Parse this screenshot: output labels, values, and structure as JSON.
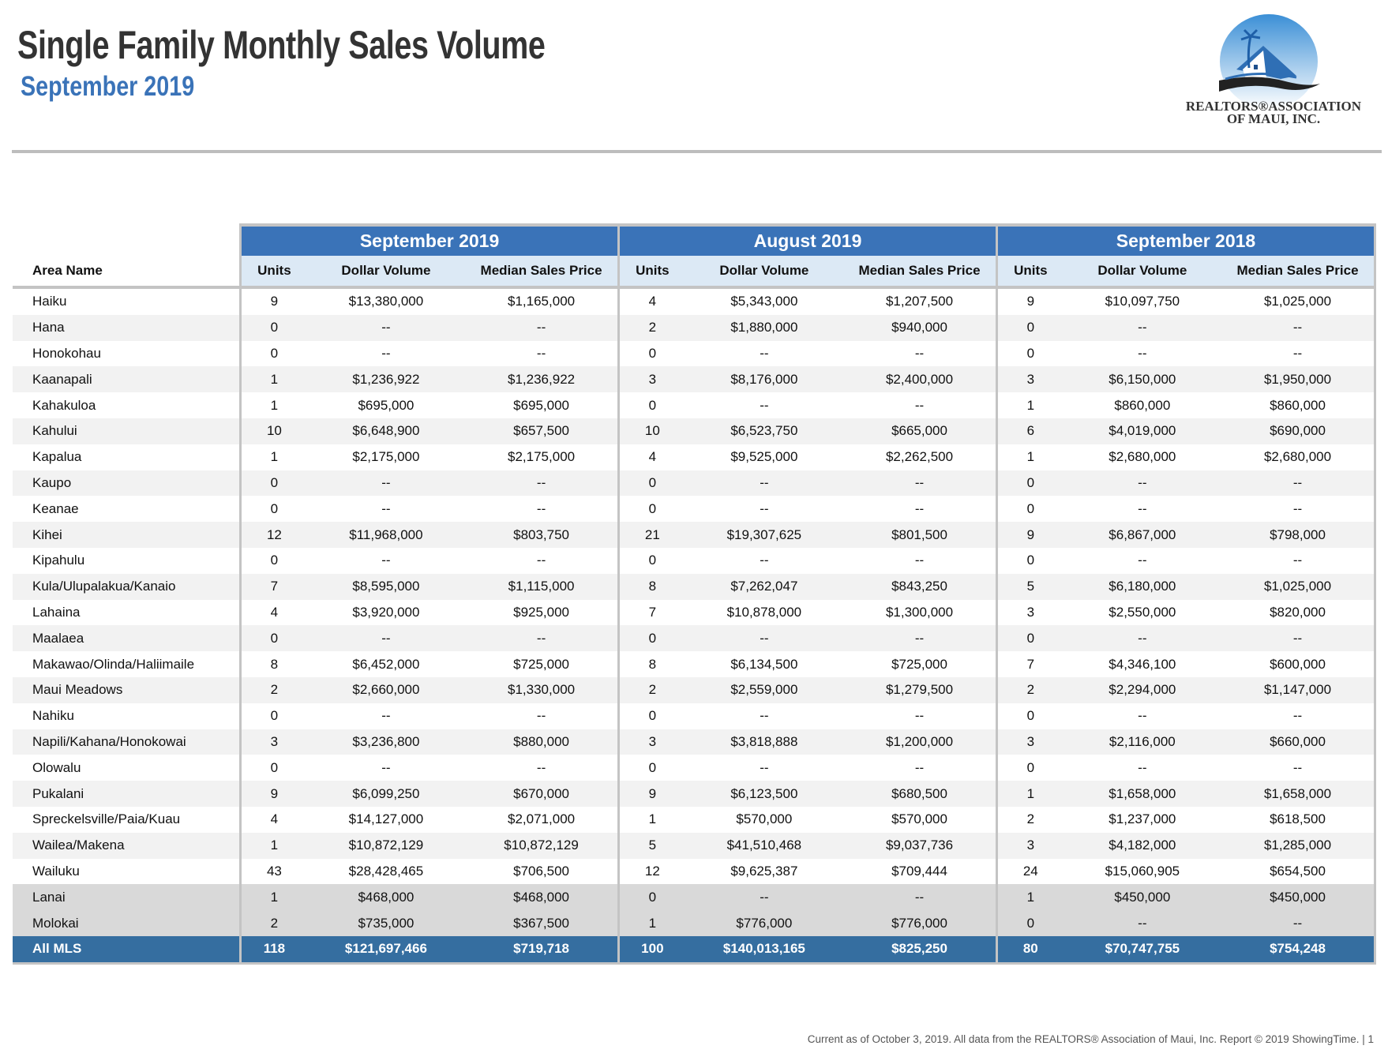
{
  "header": {
    "title": "Single Family Monthly Sales Volume",
    "subtitle": "September 2019",
    "logo_text": "REALTORS® ASSOCIATION OF MAUI, INC."
  },
  "colors": {
    "accent": "#3a73b8",
    "subheader": "#dce9f5",
    "total_row": "#356ea0",
    "island_rows": "#d9d9d9",
    "alt_rows": "#f2f2f2"
  },
  "table": {
    "area_header": "Area Name",
    "groups": [
      "September 2019",
      "August 2019",
      "September 2018"
    ],
    "sub_headers": [
      "Units",
      "Dollar Volume",
      "Median Sales Price"
    ],
    "rows": [
      {
        "area": "Haiku",
        "values": [
          "9",
          "$13,380,000",
          "$1,165,000",
          "4",
          "$5,343,000",
          "$1,207,500",
          "9",
          "$10,097,750",
          "$1,025,000"
        ]
      },
      {
        "area": "Hana",
        "values": [
          "0",
          "--",
          "--",
          "2",
          "$1,880,000",
          "$940,000",
          "0",
          "--",
          "--"
        ]
      },
      {
        "area": "Honokohau",
        "values": [
          "0",
          "--",
          "--",
          "0",
          "--",
          "--",
          "0",
          "--",
          "--"
        ]
      },
      {
        "area": "Kaanapali",
        "values": [
          "1",
          "$1,236,922",
          "$1,236,922",
          "3",
          "$8,176,000",
          "$2,400,000",
          "3",
          "$6,150,000",
          "$1,950,000"
        ]
      },
      {
        "area": "Kahakuloa",
        "values": [
          "1",
          "$695,000",
          "$695,000",
          "0",
          "--",
          "--",
          "1",
          "$860,000",
          "$860,000"
        ]
      },
      {
        "area": "Kahului",
        "values": [
          "10",
          "$6,648,900",
          "$657,500",
          "10",
          "$6,523,750",
          "$665,000",
          "6",
          "$4,019,000",
          "$690,000"
        ]
      },
      {
        "area": "Kapalua",
        "values": [
          "1",
          "$2,175,000",
          "$2,175,000",
          "4",
          "$9,525,000",
          "$2,262,500",
          "1",
          "$2,680,000",
          "$2,680,000"
        ]
      },
      {
        "area": "Kaupo",
        "values": [
          "0",
          "--",
          "--",
          "0",
          "--",
          "--",
          "0",
          "--",
          "--"
        ]
      },
      {
        "area": "Keanae",
        "values": [
          "0",
          "--",
          "--",
          "0",
          "--",
          "--",
          "0",
          "--",
          "--"
        ]
      },
      {
        "area": "Kihei",
        "values": [
          "12",
          "$11,968,000",
          "$803,750",
          "21",
          "$19,307,625",
          "$801,500",
          "9",
          "$6,867,000",
          "$798,000"
        ]
      },
      {
        "area": "Kipahulu",
        "values": [
          "0",
          "--",
          "--",
          "0",
          "--",
          "--",
          "0",
          "--",
          "--"
        ]
      },
      {
        "area": "Kula/Ulupalakua/Kanaio",
        "values": [
          "7",
          "$8,595,000",
          "$1,115,000",
          "8",
          "$7,262,047",
          "$843,250",
          "5",
          "$6,180,000",
          "$1,025,000"
        ]
      },
      {
        "area": "Lahaina",
        "values": [
          "4",
          "$3,920,000",
          "$925,000",
          "7",
          "$10,878,000",
          "$1,300,000",
          "3",
          "$2,550,000",
          "$820,000"
        ]
      },
      {
        "area": "Maalaea",
        "values": [
          "0",
          "--",
          "--",
          "0",
          "--",
          "--",
          "0",
          "--",
          "--"
        ]
      },
      {
        "area": "Makawao/Olinda/Haliimaile",
        "values": [
          "8",
          "$6,452,000",
          "$725,000",
          "8",
          "$6,134,500",
          "$725,000",
          "7",
          "$4,346,100",
          "$600,000"
        ]
      },
      {
        "area": "Maui Meadows",
        "values": [
          "2",
          "$2,660,000",
          "$1,330,000",
          "2",
          "$2,559,000",
          "$1,279,500",
          "2",
          "$2,294,000",
          "$1,147,000"
        ]
      },
      {
        "area": "Nahiku",
        "values": [
          "0",
          "--",
          "--",
          "0",
          "--",
          "--",
          "0",
          "--",
          "--"
        ]
      },
      {
        "area": "Napili/Kahana/Honokowai",
        "values": [
          "3",
          "$3,236,800",
          "$880,000",
          "3",
          "$3,818,888",
          "$1,200,000",
          "3",
          "$2,116,000",
          "$660,000"
        ]
      },
      {
        "area": "Olowalu",
        "values": [
          "0",
          "--",
          "--",
          "0",
          "--",
          "--",
          "0",
          "--",
          "--"
        ]
      },
      {
        "area": "Pukalani",
        "values": [
          "9",
          "$6,099,250",
          "$670,000",
          "9",
          "$6,123,500",
          "$680,500",
          "1",
          "$1,658,000",
          "$1,658,000"
        ]
      },
      {
        "area": "Spreckelsville/Paia/Kuau",
        "values": [
          "4",
          "$14,127,000",
          "$2,071,000",
          "1",
          "$570,000",
          "$570,000",
          "2",
          "$1,237,000",
          "$618,500"
        ]
      },
      {
        "area": "Wailea/Makena",
        "values": [
          "1",
          "$10,872,129",
          "$10,872,129",
          "5",
          "$41,510,468",
          "$9,037,736",
          "3",
          "$4,182,000",
          "$1,285,000"
        ]
      },
      {
        "area": "Wailuku",
        "values": [
          "43",
          "$28,428,465",
          "$706,500",
          "12",
          "$9,625,387",
          "$709,444",
          "24",
          "$15,060,905",
          "$654,500"
        ]
      },
      {
        "area": "Lanai",
        "type": "island",
        "values": [
          "1",
          "$468,000",
          "$468,000",
          "0",
          "--",
          "--",
          "1",
          "$450,000",
          "$450,000"
        ]
      },
      {
        "area": "Molokai",
        "type": "island",
        "values": [
          "2",
          "$735,000",
          "$367,500",
          "1",
          "$776,000",
          "$776,000",
          "0",
          "--",
          "--"
        ]
      },
      {
        "area": "All MLS",
        "type": "total",
        "values": [
          "118",
          "$121,697,466",
          "$719,718",
          "100",
          "$140,013,165",
          "$825,250",
          "80",
          "$70,747,755",
          "$754,248"
        ]
      }
    ]
  },
  "footer": {
    "text": "Current as of October 3, 2019. All data from the REALTORS® Association of Maui, Inc. Report © 2019 ShowingTime.  |  1"
  }
}
